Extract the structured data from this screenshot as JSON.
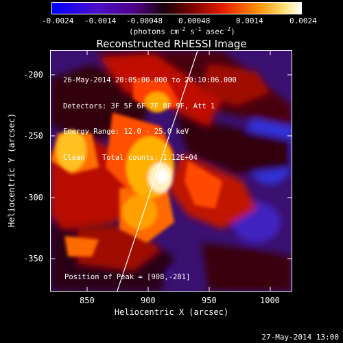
{
  "colorbar": {
    "ticks": [
      "-0.0024",
      "-0.0014",
      "-0.00048",
      "0.00048",
      "0.0014",
      "0.0024"
    ],
    "units_main": "(photons cm",
    "units_exp1": "-2",
    "units_mid1": " s",
    "units_exp2": "-1",
    "units_mid2": " asec",
    "units_exp3": "-2",
    "units_end": ")",
    "colors": [
      "#0000ff",
      "#5a00b0",
      "#2a0020",
      "#8b0000",
      "#ff2a00",
      "#ffb000",
      "#fffbe0"
    ]
  },
  "plot": {
    "title": "Reconstructed RHESSI Image",
    "xlabel": "Heliocentric X (arcsec)",
    "ylabel": "Heliocentric Y (arcsec)",
    "xticks": [
      "850",
      "900",
      "950",
      "1000"
    ],
    "yticks": [
      "-200",
      "-250",
      "-300",
      "-350"
    ],
    "info_lines": [
      "26-May-2014 20:05:00.000 to 20:10:06.000",
      "Detectors: 3F 5F 6F 7F 8F 9F, Att 1",
      "Energy Range: 12.0 - 25.0 keV",
      "Clean    Total counts: 1.12E+04"
    ],
    "peak_label": "Position of Peak = [908,-281]",
    "limb_color": "#ffffff"
  },
  "timestamp": "27-May-2014 13:00"
}
